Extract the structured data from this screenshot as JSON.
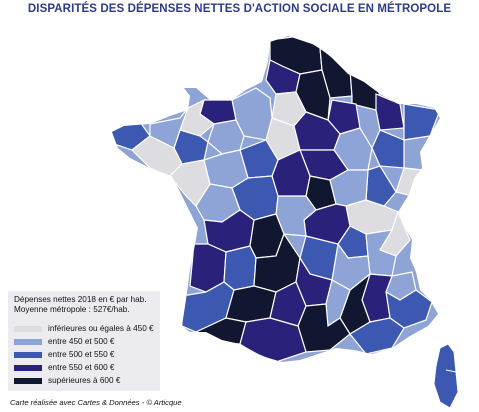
{
  "title": "DISPARITÉS DES DÉPENSES NETTES D'ACTION SOCIALE EN MÉTROPOLE",
  "legend": {
    "line1": "Dépenses nettes 2018 en € par hab.",
    "line2": "Moyenne métropole : 527€/hab.",
    "classes": [
      {
        "label": "inférieures ou égales à 450 €",
        "color": "#dcdce1"
      },
      {
        "label": "entre 450 et 500 €",
        "color": "#8fa4d6"
      },
      {
        "label": "entre 500 et 550 €",
        "color": "#3d58b0"
      },
      {
        "label": "entre 550 et 600 €",
        "color": "#2a217a"
      },
      {
        "label": "supérieures à 600 €",
        "color": "#111631"
      }
    ]
  },
  "credit": "Carte réalisée avec Cartes & Données - © Articque",
  "colors": {
    "border": "#ffffff",
    "title": "#2e3a8c"
  }
}
